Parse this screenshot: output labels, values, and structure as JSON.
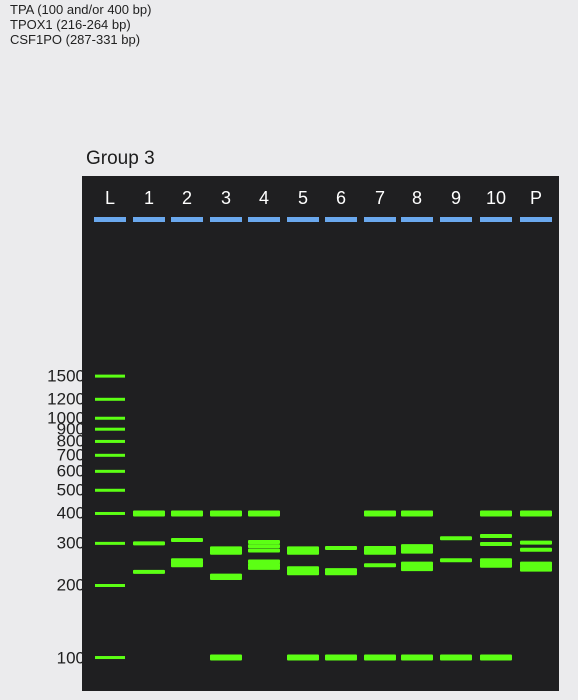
{
  "info_lines": [
    "TPA (100 and/or 400 bp)",
    "TPOX1 (216-264 bp)",
    "CSF1PO (287-331 bp)"
  ],
  "group_title": "Group 3",
  "colors": {
    "band": "#5cff14",
    "well": "#6aa8ee",
    "gel": "#1f1f21",
    "lane_label": "#ffffff"
  },
  "chart_data": {
    "type": "gel",
    "lanes": [
      "L",
      "1",
      "2",
      "3",
      "4",
      "5",
      "6",
      "7",
      "8",
      "9",
      "10",
      "P"
    ],
    "ladder_labels": [
      "1500",
      "1200",
      "1000",
      "900",
      "800",
      "700",
      "600",
      "500",
      "400",
      "300",
      "200",
      "100"
    ],
    "ladder_bp": [
      1500,
      1200,
      1000,
      900,
      800,
      700,
      600,
      500,
      400,
      300,
      200,
      100
    ],
    "bands_bp": {
      "1": [
        400,
        300,
        228
      ],
      "2": [
        400,
        310,
        255,
        248,
        243
      ],
      "3": [
        400,
        286,
        280,
        274,
        220,
        215,
        100
      ],
      "4": [
        400,
        304,
        292,
        280,
        252,
        244,
        237
      ],
      "5": [
        286,
        280,
        274,
        236,
        230,
        225,
        100
      ],
      "6": [
        287,
        232,
        225,
        100
      ],
      "7": [
        400,
        287,
        280,
        274,
        243,
        100
      ],
      "8": [
        400,
        292,
        284,
        277,
        247,
        240,
        234,
        100
      ],
      "9": [
        315,
        255,
        100
      ],
      "10": [
        400,
        322,
        298,
        255,
        248,
        242,
        100
      ],
      "P": [
        400,
        302,
        282,
        247,
        240,
        233
      ]
    }
  }
}
